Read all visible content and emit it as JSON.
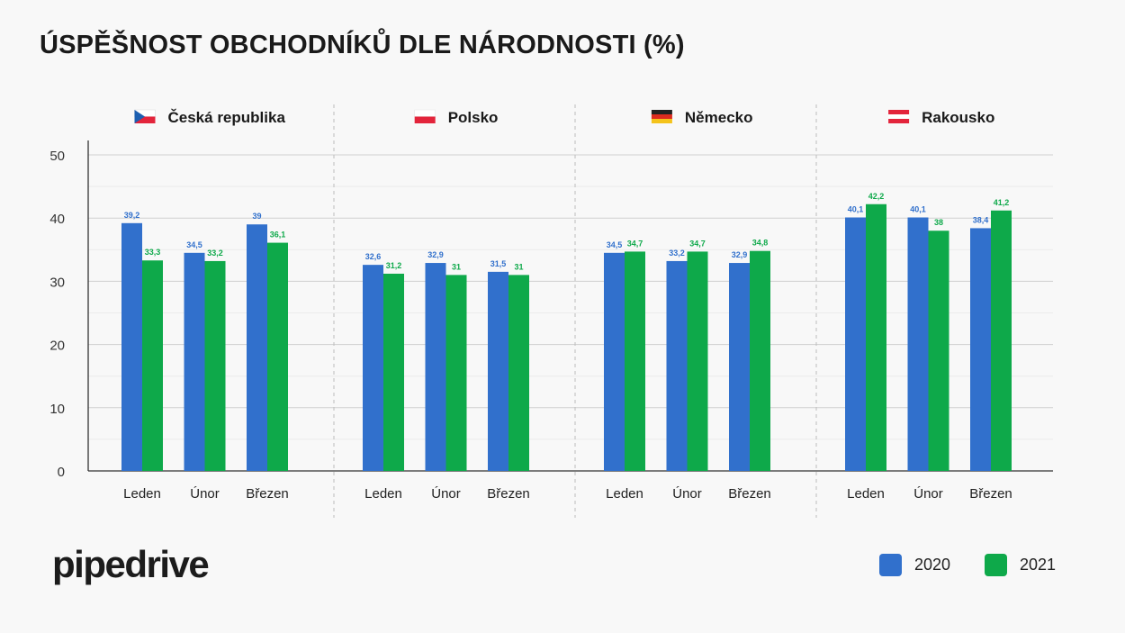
{
  "title": "ÚSPĚŠNOST OBCHODNÍKŮ DLE NÁRODNOSTI (%)",
  "logo": "pipedrive",
  "colors": {
    "s2020": "#3170cc",
    "s2021": "#0ea94a"
  },
  "legend": [
    {
      "label": "2020",
      "color": "#3170cc"
    },
    {
      "label": "2021",
      "color": "#0ea94a"
    }
  ],
  "chart_data": {
    "type": "bar",
    "ylim": [
      0,
      50
    ],
    "yticks": [
      0,
      10,
      20,
      30,
      40,
      50
    ],
    "grid": true,
    "legend_position": "bottom-right",
    "months": [
      "Leden",
      "Únor",
      "Březen"
    ],
    "groups": [
      {
        "name": "Česká republika",
        "flag": "czech-flag",
        "series": [
          {
            "name": "2020",
            "values": [
              39.2,
              34.5,
              39
            ],
            "labels": [
              "39,2",
              "34,5",
              "39"
            ]
          },
          {
            "name": "2021",
            "values": [
              33.3,
              33.2,
              36.1
            ],
            "labels": [
              "33,3",
              "33,2",
              "36,1"
            ]
          }
        ]
      },
      {
        "name": "Polsko",
        "flag": "polish-flag",
        "series": [
          {
            "name": "2020",
            "values": [
              32.6,
              32.9,
              31.5
            ],
            "labels": [
              "32,6",
              "32,9",
              "31,5"
            ]
          },
          {
            "name": "2021",
            "values": [
              31.2,
              31,
              31
            ],
            "labels": [
              "31,2",
              "31",
              "31"
            ]
          }
        ]
      },
      {
        "name": "Německo",
        "flag": "german-flag",
        "series": [
          {
            "name": "2020",
            "values": [
              34.5,
              33.2,
              32.9
            ],
            "labels": [
              "34,5",
              "33,2",
              "32,9"
            ]
          },
          {
            "name": "2021",
            "values": [
              34.7,
              34.7,
              34.8
            ],
            "labels": [
              "34,7",
              "34,7",
              "34,8"
            ]
          }
        ]
      },
      {
        "name": "Rakousko",
        "flag": "austrian-flag",
        "series": [
          {
            "name": "2020",
            "values": [
              40.1,
              40.1,
              38.4
            ],
            "labels": [
              "40,1",
              "40,1",
              "38,4"
            ]
          },
          {
            "name": "2021",
            "values": [
              42.2,
              38,
              41.2
            ],
            "labels": [
              "42,2",
              "38",
              "41,2"
            ]
          }
        ]
      }
    ]
  }
}
